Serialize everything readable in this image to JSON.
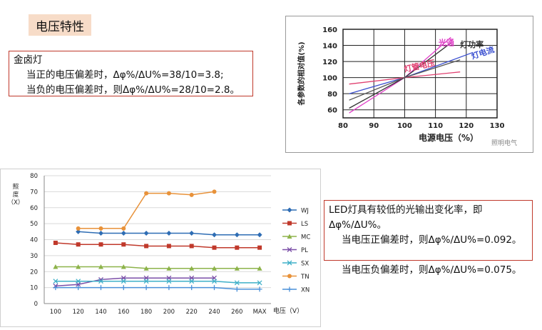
{
  "section_title": "电压特性",
  "note_halogen": {
    "title": "金卤灯",
    "line1": "当正的电压偏差时，Δφ%/ΔU%=38/10=3.8;",
    "line2": "当负的电压偏差时，则Δφ%/ΔU%=28/10=2.8。"
  },
  "note_led": {
    "line1": "LED灯具有较低的光输出变化率，即",
    "line2": "Δφ%/ΔU%。",
    "line3": "当电压正偏差时，则Δφ%/ΔU%=0.092。",
    "line4": "当电压负偏差时，则Δφ%/ΔU%=0.075。"
  },
  "watermark": "照明电气",
  "chart_data": [
    {
      "type": "line",
      "ylabel": "各参数的相对值(%)",
      "xlabel": "电源电压（%）",
      "xlim": [
        80,
        130
      ],
      "ylim": [
        50,
        160
      ],
      "x_ticks": [
        "80",
        "90",
        "100",
        "110",
        "120",
        "130"
      ],
      "y_ticks": [
        "60",
        "80",
        "100",
        "120",
        "140",
        "160"
      ],
      "annotations": [
        "灯管电压",
        "光通",
        "灯功率",
        "灯电流"
      ],
      "series": [
        {
          "name": "光通",
          "color": "#e040c8",
          "points": [
            [
              82,
              56
            ],
            [
              100,
              100
            ],
            [
              115,
              150
            ]
          ]
        },
        {
          "name": "灯功率",
          "color": "#333333",
          "points": [
            [
              82,
              62
            ],
            [
              100,
              100
            ],
            [
              115,
              143
            ]
          ]
        },
        {
          "name": "灯电流",
          "color": "#3a4fd0",
          "points": [
            [
              82,
              80
            ],
            [
              100,
              100
            ],
            [
              122,
              131
            ]
          ]
        },
        {
          "name": "灯管电压",
          "color": "#e04070",
          "points": [
            [
              82,
              92
            ],
            [
              100,
              100
            ],
            [
              118,
              107
            ]
          ]
        },
        {
          "name": "",
          "color": "#555555",
          "points": [
            [
              82,
              72
            ],
            [
              100,
              100
            ],
            [
              118,
              122
            ]
          ]
        }
      ]
    },
    {
      "type": "line",
      "ylabel": "照度（X）",
      "xlabel": "电压（V）",
      "categories": [
        "100",
        "120",
        "140",
        "160",
        "180",
        "200",
        "220",
        "240",
        "260",
        "MAX"
      ],
      "ylim": [
        0,
        80
      ],
      "y_ticks": [
        "0",
        "10",
        "20",
        "30",
        "40",
        "50",
        "60",
        "70",
        "80"
      ],
      "series": [
        {
          "name": "WJ",
          "color": "#2e6db4",
          "marker": "diamond",
          "values": [
            null,
            45,
            44,
            44,
            44,
            44,
            44,
            43,
            43,
            43
          ]
        },
        {
          "name": "LS",
          "color": "#c0392b",
          "marker": "square",
          "values": [
            38,
            37,
            37,
            37,
            36,
            36,
            36,
            35,
            35,
            35
          ]
        },
        {
          "name": "MC",
          "color": "#8db34a",
          "marker": "triangle",
          "values": [
            23,
            23,
            23,
            23,
            22,
            22,
            22,
            22,
            22,
            22
          ]
        },
        {
          "name": "PL",
          "color": "#7b4fa8",
          "marker": "x",
          "values": [
            11,
            12,
            15,
            16,
            16,
            16,
            16,
            16,
            null,
            null
          ]
        },
        {
          "name": "SX",
          "color": "#3fb0c8",
          "marker": "x",
          "values": [
            14,
            14,
            14,
            14,
            14,
            14,
            14,
            14,
            13,
            13
          ]
        },
        {
          "name": "TN",
          "color": "#e8923a",
          "marker": "circle",
          "values": [
            null,
            47,
            47,
            47,
            69,
            69,
            68,
            70,
            null,
            null
          ]
        },
        {
          "name": "XN",
          "color": "#4a90d9",
          "marker": "plus",
          "values": [
            10,
            10,
            10,
            10,
            10,
            10,
            10,
            10,
            9,
            9
          ]
        }
      ]
    }
  ]
}
